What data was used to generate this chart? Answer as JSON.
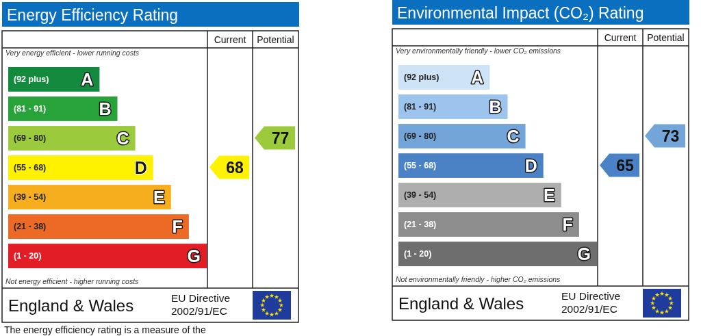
{
  "chart_data": [
    {
      "type": "other",
      "title": "Energy Efficiency Rating",
      "categories": [
        "(92 plus)",
        "(81 - 91)",
        "(69 - 80)",
        "(55 - 68)",
        "(39 - 54)",
        "(21 - 38)",
        "(1 - 20)"
      ],
      "colors": [
        "#138a3e",
        "#27a33a",
        "#9bcb3c",
        "#fff200",
        "#f6ae1e",
        "#ec6a26",
        "#e31d25"
      ],
      "value_labels": [
        "A",
        "B",
        "C",
        "D",
        "E",
        "F",
        "G"
      ],
      "series": [
        {
          "color": "#fff200",
          "values": [
            null,
            null,
            null,
            68,
            null,
            null,
            null
          ]
        },
        {
          "color": "#9bcb3c",
          "values": [
            null,
            null,
            77,
            null,
            null,
            null,
            null
          ]
        }
      ],
      "data_labels": true,
      "annotations": [
        "Current",
        "Potential",
        "Very energy efficient - lower running costs",
        "Not energy efficient - higher running costs",
        "England & Wales",
        "EU Directive",
        "2002/91/EC",
        "The energy efficiency rating is a measure of the"
      ]
    },
    {
      "type": "other",
      "title": "Environmental Impact (CO₂) Rating",
      "categories": [
        "(92 plus)",
        "(81 - 91)",
        "(69 - 80)",
        "(55 - 68)",
        "(39 - 54)",
        "(21 - 38)",
        "(1 - 20)"
      ],
      "colors": [
        "#cfe3f6",
        "#9dc4ec",
        "#74a5d9",
        "#4b82c5",
        "#aeaeae",
        "#8d8d8d",
        "#6e6e6e"
      ],
      "value_labels": [
        "A",
        "B",
        "C",
        "D",
        "E",
        "F",
        "G"
      ],
      "series": [
        {
          "color": "#4b82c5",
          "values": [
            null,
            null,
            null,
            65,
            null,
            null,
            null
          ]
        },
        {
          "color": "#74a5d9",
          "values": [
            null,
            null,
            73,
            null,
            null,
            null,
            null
          ]
        }
      ],
      "data_labels": true,
      "annotations": [
        "Current",
        "Potential",
        "Very environmentally friendly - lower CO₂ emissions",
        "Not environmentally friendly - higher CO₂ emissions",
        "England & Wales",
        "EU Directive",
        "2002/91/EC"
      ]
    }
  ]
}
